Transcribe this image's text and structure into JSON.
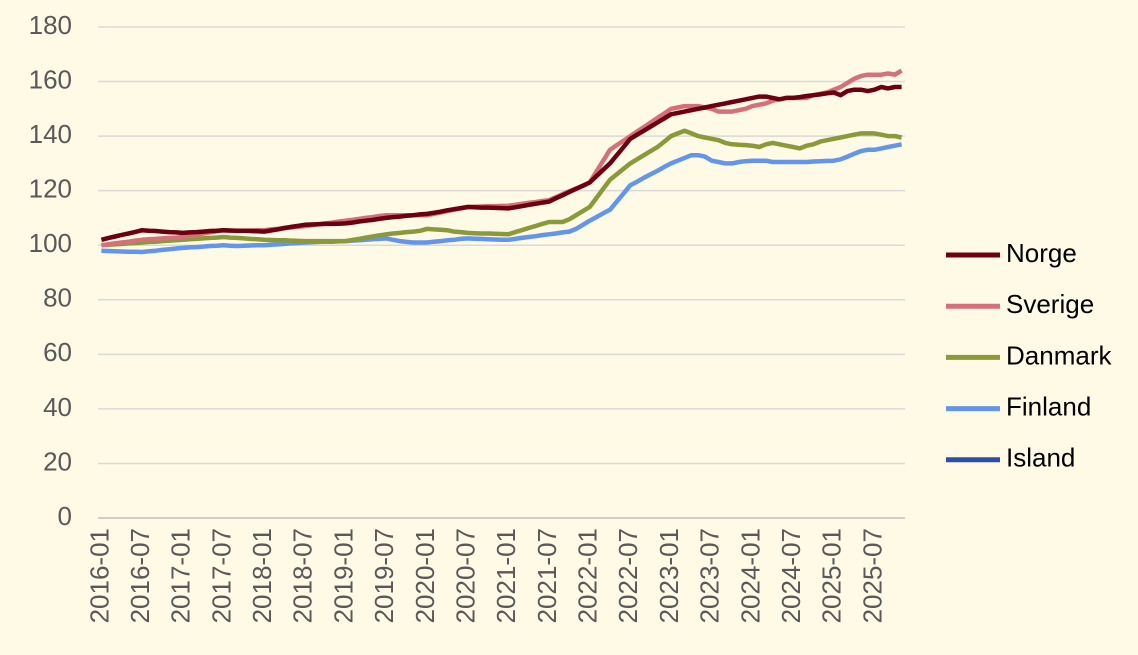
{
  "chart_data": {
    "type": "line",
    "categories": [
      "2016-01",
      null,
      null,
      null,
      null,
      null,
      "2016-07",
      null,
      null,
      null,
      null,
      null,
      "2017-01",
      null,
      null,
      null,
      null,
      null,
      "2017-07",
      null,
      null,
      null,
      null,
      null,
      "2018-01",
      null,
      null,
      null,
      null,
      null,
      "2018-07",
      null,
      null,
      null,
      null,
      null,
      "2019-01",
      null,
      null,
      null,
      null,
      null,
      "2019-07",
      null,
      null,
      null,
      null,
      null,
      "2020-01",
      null,
      null,
      null,
      null,
      null,
      "2020-07",
      null,
      null,
      null,
      null,
      null,
      "2021-01",
      null,
      null,
      null,
      null,
      null,
      "2021-07",
      null,
      null,
      null,
      null,
      null,
      "2022-01",
      null,
      null,
      null,
      null,
      null,
      "2022-07",
      null,
      null,
      null,
      null,
      null,
      "2023-01",
      null,
      null,
      null,
      null,
      null,
      "2023-07",
      null,
      null,
      null,
      null,
      null,
      "2024-01",
      null,
      null,
      null,
      null,
      null,
      "2024-07",
      null,
      null,
      null,
      null,
      null,
      "2025-01",
      null,
      null,
      null,
      null,
      null,
      "2025-07",
      null,
      null,
      null,
      null
    ],
    "series": [
      {
        "name": "Norge",
        "color": "#6b0010",
        "values": [
          102,
          102.6,
          103.2,
          103.8,
          104.3,
          104.9,
          105.5,
          105.3,
          105.2,
          105,
          104.8,
          104.7,
          104.5,
          104.7,
          104.8,
          105,
          105.2,
          105.3,
          105.5,
          105.4,
          105.3,
          105.3,
          105.2,
          105.1,
          105,
          105.4,
          105.8,
          106.3,
          106.7,
          107.1,
          107.5,
          107.6,
          107.7,
          107.8,
          107.8,
          107.9,
          108,
          108.3,
          108.7,
          109,
          109.3,
          109.7,
          110,
          110.3,
          110.5,
          110.8,
          111,
          111.3,
          111.5,
          111.9,
          112.3,
          112.8,
          113.2,
          113.6,
          114,
          113.9,
          113.8,
          113.8,
          113.7,
          113.6,
          113.5,
          113.9,
          114.3,
          114.8,
          115.2,
          115.6,
          116,
          117.2,
          118.3,
          119.5,
          120.7,
          121.8,
          123,
          125.3,
          127.7,
          130,
          133,
          136,
          139,
          140.5,
          142,
          143.5,
          145,
          146.5,
          148,
          148.5,
          149,
          149.5,
          150,
          150.5,
          151,
          151.5,
          152,
          152.5,
          153,
          153.5,
          154,
          154.5,
          154.5,
          154,
          153.5,
          154,
          154,
          154.3,
          154.7,
          155,
          155.3,
          155.7,
          156,
          155,
          156.5,
          157,
          157,
          156.5,
          157,
          158,
          157.5,
          158,
          158
        ]
      },
      {
        "name": "Sverige",
        "color": "#d4707a",
        "values": [
          100,
          100.3,
          100.7,
          101,
          101.3,
          101.7,
          102,
          102.2,
          102.3,
          102.5,
          102.7,
          102.8,
          103,
          103.4,
          103.8,
          104.3,
          104.7,
          105.1,
          105.5,
          105.3,
          105.2,
          105.3,
          105.4,
          105.5,
          105.5,
          105.8,
          106,
          106.3,
          106.5,
          106.8,
          107,
          107.3,
          107.7,
          108,
          108.3,
          108.7,
          109,
          109.3,
          109.7,
          110,
          110.3,
          110.7,
          111,
          111,
          111,
          111,
          111,
          111,
          111,
          111.5,
          112,
          112.5,
          113,
          113.5,
          114,
          114.1,
          114.2,
          114.3,
          114.3,
          114.4,
          114.5,
          114.8,
          115.2,
          115.5,
          115.8,
          116.2,
          116.5,
          117.6,
          118.7,
          119.8,
          120.8,
          121.9,
          123,
          127,
          131,
          135,
          136.7,
          138.3,
          140,
          141.7,
          143.3,
          145,
          146.7,
          148.3,
          150,
          150.5,
          151,
          151,
          151,
          150.5,
          150,
          149,
          149,
          149,
          149.5,
          150,
          151,
          151.5,
          152,
          153,
          153.5,
          154,
          154,
          154,
          154,
          155,
          155.5,
          156,
          157,
          158,
          159.5,
          161,
          162,
          162.5,
          162.5,
          162.5,
          163,
          162.5,
          164
        ]
      },
      {
        "name": "Danmark",
        "color": "#8a9a3a",
        "values": [
          100,
          100.2,
          100.3,
          100.5,
          100.7,
          100.8,
          101,
          101.2,
          101.3,
          101.5,
          101.7,
          101.8,
          102,
          102.2,
          102.3,
          102.5,
          102.7,
          102.8,
          103,
          102.8,
          102.7,
          102.5,
          102.3,
          102.2,
          102,
          101.9,
          101.8,
          101.8,
          101.7,
          101.6,
          101.5,
          101.5,
          101.5,
          101.5,
          101.5,
          101.5,
          101.5,
          101.9,
          102.3,
          102.8,
          103.2,
          103.6,
          104,
          104.3,
          104.5,
          104.8,
          105,
          105.3,
          106,
          105.8,
          105.7,
          105.5,
          105,
          104.8,
          104.5,
          104.4,
          104.3,
          104.3,
          104.2,
          104.1,
          104,
          104.8,
          105.5,
          106.3,
          107,
          107.8,
          108.5,
          108.5,
          108.5,
          109.5,
          111,
          112.5,
          114,
          117.3,
          120.7,
          124,
          126,
          128,
          130,
          131.5,
          133,
          134.5,
          136,
          138,
          140,
          141,
          142,
          141,
          140,
          139.5,
          139,
          138.5,
          137.5,
          137,
          136.8,
          136.7,
          136.5,
          136,
          137,
          137.5,
          137,
          136.5,
          136,
          135.5,
          136.5,
          137,
          138,
          138.5,
          139,
          139.5,
          140,
          140.5,
          141,
          141,
          141,
          140.5,
          140,
          140,
          139.5
        ]
      },
      {
        "name": "Finland",
        "color": "#6495ed",
        "values": [
          98,
          97.9,
          97.8,
          97.7,
          97.6,
          97.6,
          97.5,
          97.8,
          98,
          98.3,
          98.5,
          98.8,
          99,
          99.2,
          99.3,
          99.5,
          99.7,
          99.8,
          100,
          99.8,
          99.7,
          99.8,
          99.9,
          100,
          100,
          100.2,
          100.3,
          100.5,
          100.7,
          100.8,
          101,
          101.1,
          101.2,
          101.3,
          101.3,
          101.4,
          101.5,
          101.7,
          101.8,
          102,
          102.2,
          102.3,
          102.5,
          102,
          101.5,
          101.2,
          101,
          101,
          101,
          101.3,
          101.5,
          101.8,
          102,
          102.3,
          102.5,
          102.4,
          102.3,
          102.2,
          102.1,
          102,
          102,
          102.3,
          102.7,
          103,
          103.3,
          103.7,
          104,
          104.3,
          104.7,
          105,
          106,
          107.5,
          109,
          110.3,
          111.7,
          113,
          116,
          119,
          122,
          123.3,
          124.7,
          126,
          127.3,
          128.7,
          130,
          131,
          132,
          133,
          133,
          132.5,
          131,
          130.5,
          130,
          130,
          130.5,
          130.8,
          131,
          131,
          131,
          130.5,
          130.5,
          130.5,
          130.5,
          130.5,
          130.5,
          130.7,
          130.8,
          130.9,
          131,
          131.5,
          132.5,
          133.5,
          134.5,
          135,
          135,
          135.5,
          136,
          136.5,
          137
        ]
      },
      {
        "name": "Island",
        "color": "#2e4fa8",
        "values": [
          null,
          null,
          null,
          null,
          null,
          null,
          null,
          null,
          null,
          null,
          null,
          null,
          null,
          null,
          null,
          null,
          null,
          null,
          null,
          null,
          null,
          null,
          null,
          null,
          null,
          null,
          null,
          null,
          null,
          null,
          null,
          null,
          null,
          null,
          null,
          null,
          null,
          null,
          null,
          null,
          null,
          null,
          null,
          null,
          null,
          null,
          null,
          null,
          null,
          null,
          null,
          null,
          null,
          null,
          null,
          null,
          null,
          null,
          null,
          null,
          null,
          null,
          null,
          null,
          null,
          null,
          null,
          null,
          null,
          null,
          null,
          null,
          null,
          null,
          null,
          null,
          null,
          null,
          null,
          null,
          null,
          null,
          null,
          null,
          null,
          null,
          null,
          null,
          null,
          null,
          null,
          null,
          null,
          null,
          null,
          null,
          null,
          null,
          null,
          null,
          null,
          null,
          null,
          null,
          null,
          null,
          null,
          null,
          null,
          null,
          null,
          null,
          null,
          null,
          null,
          null,
          null,
          null,
          null
        ]
      }
    ],
    "ylim": [
      0,
      180
    ],
    "yticks": [
      0,
      20,
      40,
      60,
      80,
      100,
      120,
      140,
      160,
      180
    ],
    "grid": true,
    "legend": "right"
  }
}
